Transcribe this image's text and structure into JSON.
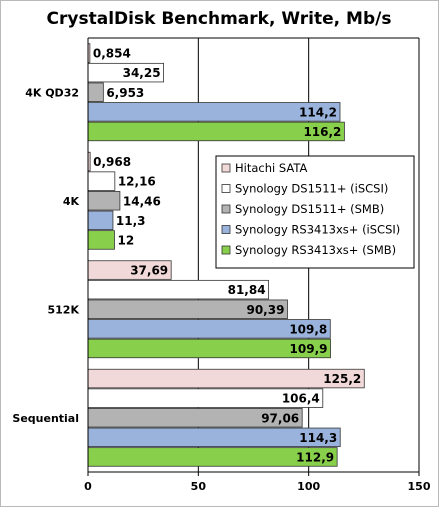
{
  "chart_data": {
    "type": "bar",
    "orientation": "horizontal",
    "title": "CrystalDisk Benchmark, Write, Mb/s",
    "categories": [
      "4K QD32",
      "4K",
      "512K",
      "Sequential"
    ],
    "series": [
      {
        "name": "Hitachi SATA",
        "color": "#f2d9d9",
        "values": [
          0.854,
          0.968,
          37.69,
          125.2
        ],
        "labels": [
          "0,854",
          "0,968",
          "37,69",
          "125,2"
        ]
      },
      {
        "name": "Synology DS1511+ (iSCSI)",
        "color": "#ffffff",
        "values": [
          34.25,
          12.16,
          81.84,
          106.4
        ],
        "labels": [
          "34,25",
          "12,16",
          "81,84",
          "106,4"
        ]
      },
      {
        "name": "Synology DS1511+ (SMB)",
        "color": "#b3b3b3",
        "values": [
          6.953,
          14.46,
          90.39,
          97.06
        ],
        "labels": [
          "6,953",
          "14,46",
          "90,39",
          "97,06"
        ]
      },
      {
        "name": "Synology RS3413xs+ (iSCSI)",
        "color": "#99b3dd",
        "values": [
          114.2,
          11.3,
          109.8,
          114.3
        ],
        "labels": [
          "114,2",
          "11,3",
          "109,8",
          "114,3"
        ]
      },
      {
        "name": "Synology RS3413xs+ (SMB)",
        "color": "#88d04b",
        "values": [
          116.2,
          12,
          109.9,
          112.9
        ],
        "labels": [
          "116,2",
          "12",
          "109,9",
          "112,9"
        ]
      }
    ],
    "xlim": [
      0,
      150
    ],
    "xticks": [
      0,
      50,
      100,
      150
    ],
    "grid": "vertical",
    "legend": "right, inside plot"
  }
}
